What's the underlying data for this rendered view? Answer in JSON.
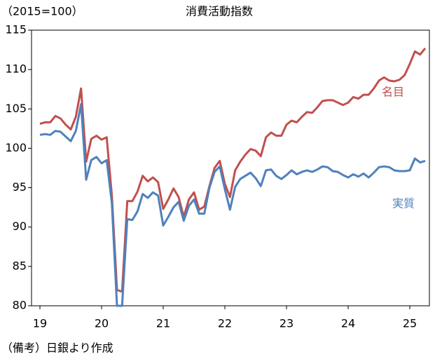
{
  "chart_data": {
    "type": "line",
    "title": "消費活動指数",
    "y_label": "（2015=100）",
    "note": "（備考）日銀より作成",
    "categories": [
      "19",
      null,
      null,
      null,
      null,
      null,
      null,
      null,
      null,
      null,
      null,
      null,
      "20",
      null,
      null,
      null,
      null,
      null,
      null,
      null,
      null,
      null,
      null,
      null,
      "21",
      null,
      null,
      null,
      null,
      null,
      null,
      null,
      null,
      null,
      null,
      null,
      "22",
      null,
      null,
      null,
      null,
      null,
      null,
      null,
      null,
      null,
      null,
      null,
      "23",
      null,
      null,
      null,
      null,
      null,
      null,
      null,
      null,
      null,
      null,
      null,
      "24",
      null,
      null,
      null,
      null,
      null,
      null,
      null,
      null,
      null,
      null,
      null,
      "25",
      null,
      null,
      null
    ],
    "series": [
      {
        "name": "名目",
        "color": "#c0504d",
        "values": [
          103.1,
          103.3,
          103.3,
          104.1,
          103.8,
          103.0,
          102.4,
          104.0,
          107.6,
          98.3,
          101.2,
          101.6,
          101.1,
          101.4,
          94.0,
          82.0,
          81.8,
          93.3,
          93.3,
          94.5,
          96.5,
          95.8,
          96.3,
          95.7,
          92.3,
          93.5,
          94.9,
          93.8,
          91.3,
          93.5,
          94.4,
          92.2,
          92.6,
          95.2,
          97.5,
          98.4,
          95.5,
          93.8,
          97.2,
          98.3,
          99.2,
          99.9,
          99.7,
          99.0,
          101.4,
          102.0,
          101.6,
          101.6,
          103.0,
          103.5,
          103.3,
          104.0,
          104.6,
          104.5,
          105.2,
          106.0,
          106.1,
          106.1,
          105.8,
          105.5,
          105.8,
          106.5,
          106.3,
          106.8,
          106.8,
          107.6,
          108.6,
          109.0,
          108.6,
          108.5,
          108.7,
          109.3,
          110.7,
          112.3,
          111.9,
          112.7
        ]
      },
      {
        "name": "実質",
        "color": "#4f81bd",
        "values": [
          101.7,
          101.8,
          101.7,
          102.2,
          102.1,
          101.5,
          100.9,
          102.2,
          105.6,
          96.0,
          98.5,
          98.9,
          98.1,
          98.5,
          93.0,
          80.0,
          80.0,
          91.0,
          90.9,
          92.0,
          94.2,
          93.7,
          94.4,
          94.0,
          90.2,
          91.3,
          92.5,
          93.2,
          90.8,
          92.7,
          93.5,
          91.7,
          91.7,
          95.0,
          97.0,
          97.7,
          94.8,
          92.2,
          95.1,
          96.1,
          96.5,
          96.9,
          96.2,
          95.2,
          97.2,
          97.3,
          96.5,
          96.1,
          96.6,
          97.2,
          96.7,
          97.0,
          97.2,
          97.0,
          97.3,
          97.7,
          97.6,
          97.1,
          97.0,
          96.6,
          96.3,
          96.7,
          96.4,
          96.8,
          96.3,
          96.9,
          97.6,
          97.7,
          97.6,
          97.2,
          97.1,
          97.1,
          97.2,
          98.7,
          98.2,
          98.4
        ]
      }
    ],
    "ylim": [
      80,
      115
    ],
    "yticks": [
      80,
      85,
      90,
      95,
      100,
      105,
      110,
      115
    ]
  }
}
